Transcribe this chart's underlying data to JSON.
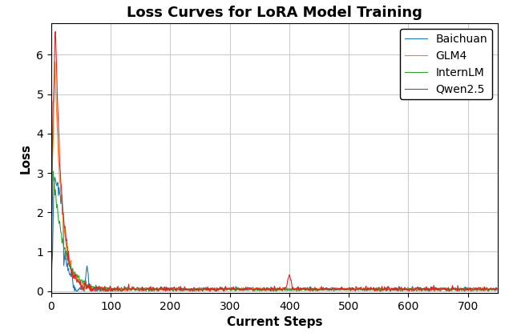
{
  "title": "Loss Curves for LoRA Model Training",
  "xlabel": "Current Steps",
  "ylabel": "Loss",
  "xlim": [
    0,
    750
  ],
  "ylim": [
    -0.05,
    6.8
  ],
  "yticks": [
    0,
    1,
    2,
    3,
    4,
    5,
    6
  ],
  "xticks": [
    0,
    100,
    200,
    300,
    400,
    500,
    600,
    700
  ],
  "series": [
    {
      "name": "Baichuan",
      "color": "#1f77b4",
      "linewidth": 0.8
    },
    {
      "name": "GLM4",
      "color": "#ff7f0e",
      "linewidth": 0.8
    },
    {
      "name": "InternLM",
      "color": "#2ca02c",
      "linewidth": 0.8
    },
    {
      "name": "Qwen2.5",
      "color": "#d62728",
      "linewidth": 0.8
    }
  ],
  "total_steps": 750,
  "grid_color": "#cccccc",
  "background_color": "#ffffff",
  "title_fontsize": 13,
  "label_fontsize": 11,
  "tick_fontsize": 10,
  "legend_fontsize": 10
}
